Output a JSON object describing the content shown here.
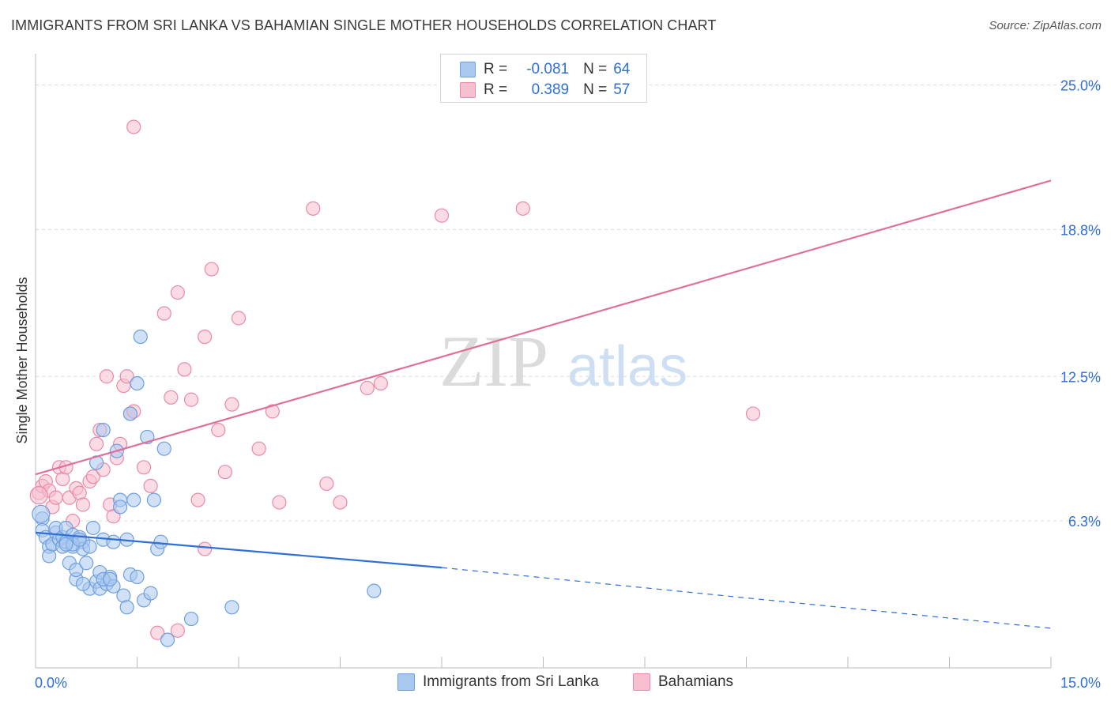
{
  "title": "IMMIGRANTS FROM SRI LANKA VS BAHAMIAN SINGLE MOTHER HOUSEHOLDS CORRELATION CHART",
  "source": "Source: ZipAtlas.com",
  "watermark": {
    "zip": "ZIP",
    "atlas": "atlas"
  },
  "legend": {
    "rows": [
      {
        "r_label": "R =",
        "r_value": "-0.081",
        "n_label": "N =",
        "n_value": "64"
      },
      {
        "r_label": "R =",
        "r_value": "0.389",
        "n_label": "N =",
        "n_value": "57"
      }
    ]
  },
  "colors": {
    "blue_fill": "#a9c8f0",
    "blue_stroke": "#6f9fdd",
    "blue_line": "#2f6fd6",
    "pink_fill": "#f7bfd0",
    "pink_stroke": "#e98aa8",
    "pink_line": "#e07098",
    "grid": "#dcdcdc",
    "axis_text": "#2f6fd6"
  },
  "chart_data": {
    "type": "scatter",
    "title": "IMMIGRANTS FROM SRI LANKA VS BAHAMIAN SINGLE MOTHER HOUSEHOLDS CORRELATION CHART",
    "xlabel": "",
    "ylabel": "Single Mother Households",
    "xlim": [
      0,
      15
    ],
    "ylim": [
      0,
      26
    ],
    "x_tick_labels": [
      "0.0%",
      "15.0%"
    ],
    "y_ticks": [
      6.3,
      12.5,
      18.8,
      25.0
    ],
    "y_tick_labels": [
      "6.3%",
      "12.5%",
      "18.8%",
      "25.0%"
    ],
    "grid": true,
    "legend_position": "top-center",
    "series": [
      {
        "name": "Immigrants from Sri Lanka",
        "color": "#a9c8f0",
        "points": [
          [
            0.1,
            6.4
          ],
          [
            0.1,
            5.9
          ],
          [
            0.15,
            5.6
          ],
          [
            0.2,
            5.2
          ],
          [
            0.2,
            4.8
          ],
          [
            0.25,
            5.3
          ],
          [
            0.3,
            5.8
          ],
          [
            0.3,
            6.0
          ],
          [
            0.35,
            5.5
          ],
          [
            0.4,
            5.2
          ],
          [
            0.4,
            5.6
          ],
          [
            0.45,
            6.0
          ],
          [
            0.45,
            5.4
          ],
          [
            0.5,
            4.5
          ],
          [
            0.55,
            5.7
          ],
          [
            0.55,
            5.2
          ],
          [
            0.6,
            3.8
          ],
          [
            0.6,
            4.2
          ],
          [
            0.65,
            5.6
          ],
          [
            0.7,
            5.4
          ],
          [
            0.7,
            5.1
          ],
          [
            0.75,
            4.5
          ],
          [
            0.8,
            3.4
          ],
          [
            0.8,
            5.2
          ],
          [
            0.85,
            6.0
          ],
          [
            0.9,
            3.7
          ],
          [
            0.9,
            8.8
          ],
          [
            0.95,
            4.1
          ],
          [
            0.95,
            3.4
          ],
          [
            1.0,
            10.2
          ],
          [
            1.0,
            5.5
          ],
          [
            1.05,
            3.6
          ],
          [
            1.1,
            3.9
          ],
          [
            1.15,
            3.5
          ],
          [
            1.15,
            5.4
          ],
          [
            1.2,
            9.3
          ],
          [
            1.25,
            7.2
          ],
          [
            1.25,
            6.9
          ],
          [
            1.3,
            3.1
          ],
          [
            1.35,
            5.5
          ],
          [
            1.35,
            2.6
          ],
          [
            1.4,
            10.9
          ],
          [
            1.4,
            4.0
          ],
          [
            1.45,
            7.2
          ],
          [
            1.5,
            3.9
          ],
          [
            1.5,
            12.2
          ],
          [
            1.55,
            14.2
          ],
          [
            1.6,
            2.9
          ],
          [
            1.65,
            9.9
          ],
          [
            1.7,
            3.2
          ],
          [
            1.75,
            7.2
          ],
          [
            1.8,
            5.1
          ],
          [
            1.85,
            5.4
          ],
          [
            1.9,
            9.4
          ],
          [
            1.95,
            1.2
          ],
          [
            0.55,
            5.3
          ],
          [
            0.65,
            5.5
          ],
          [
            0.45,
            5.3
          ],
          [
            0.7,
            3.6
          ],
          [
            1.0,
            3.8
          ],
          [
            2.3,
            2.1
          ],
          [
            2.9,
            2.6
          ],
          [
            5.0,
            3.3
          ],
          [
            1.1,
            3.8
          ]
        ],
        "trend": {
          "x_start": 0,
          "y_start": 5.8,
          "x_end_solid": 6.0,
          "y_end_solid": 4.3,
          "x_end": 15,
          "y_end": 1.7
        }
      },
      {
        "name": "Bahamians",
        "color": "#f7bfd0",
        "points": [
          [
            0.05,
            7.5
          ],
          [
            0.1,
            7.8
          ],
          [
            0.15,
            8.0
          ],
          [
            0.2,
            7.6
          ],
          [
            0.25,
            6.9
          ],
          [
            0.3,
            7.3
          ],
          [
            0.35,
            8.6
          ],
          [
            0.4,
            8.1
          ],
          [
            0.45,
            8.6
          ],
          [
            0.5,
            7.3
          ],
          [
            0.55,
            6.3
          ],
          [
            0.6,
            7.7
          ],
          [
            0.65,
            7.5
          ],
          [
            0.7,
            7.0
          ],
          [
            0.8,
            8.0
          ],
          [
            0.85,
            8.2
          ],
          [
            0.9,
            9.6
          ],
          [
            0.95,
            10.2
          ],
          [
            1.0,
            8.5
          ],
          [
            1.05,
            12.5
          ],
          [
            1.1,
            7.0
          ],
          [
            1.15,
            6.5
          ],
          [
            1.2,
            9.0
          ],
          [
            1.25,
            9.6
          ],
          [
            1.3,
            12.1
          ],
          [
            1.35,
            12.5
          ],
          [
            1.4,
            10.9
          ],
          [
            1.45,
            11.0
          ],
          [
            1.6,
            8.6
          ],
          [
            1.7,
            7.8
          ],
          [
            1.9,
            15.2
          ],
          [
            2.0,
            11.6
          ],
          [
            2.1,
            16.1
          ],
          [
            2.2,
            12.8
          ],
          [
            2.3,
            11.5
          ],
          [
            2.4,
            7.2
          ],
          [
            2.5,
            14.2
          ],
          [
            2.6,
            17.1
          ],
          [
            2.7,
            10.2
          ],
          [
            2.8,
            8.4
          ],
          [
            2.9,
            11.3
          ],
          [
            3.0,
            15.0
          ],
          [
            3.3,
            9.4
          ],
          [
            3.5,
            11.0
          ],
          [
            3.6,
            7.1
          ],
          [
            4.1,
            19.7
          ],
          [
            4.3,
            7.9
          ],
          [
            4.5,
            7.1
          ],
          [
            4.9,
            12.0
          ],
          [
            5.1,
            12.2
          ],
          [
            6.0,
            19.4
          ],
          [
            7.2,
            19.7
          ],
          [
            10.6,
            10.9
          ],
          [
            1.45,
            23.2
          ],
          [
            1.8,
            1.5
          ],
          [
            2.1,
            1.6
          ],
          [
            2.5,
            5.1
          ]
        ],
        "trend": {
          "x_start": 0,
          "y_start": 8.3,
          "x_end": 15,
          "y_end": 20.9
        }
      }
    ]
  },
  "bottom_legend": [
    {
      "label": "Immigrants from Sri Lanka"
    },
    {
      "label": "Bahamians"
    }
  ]
}
